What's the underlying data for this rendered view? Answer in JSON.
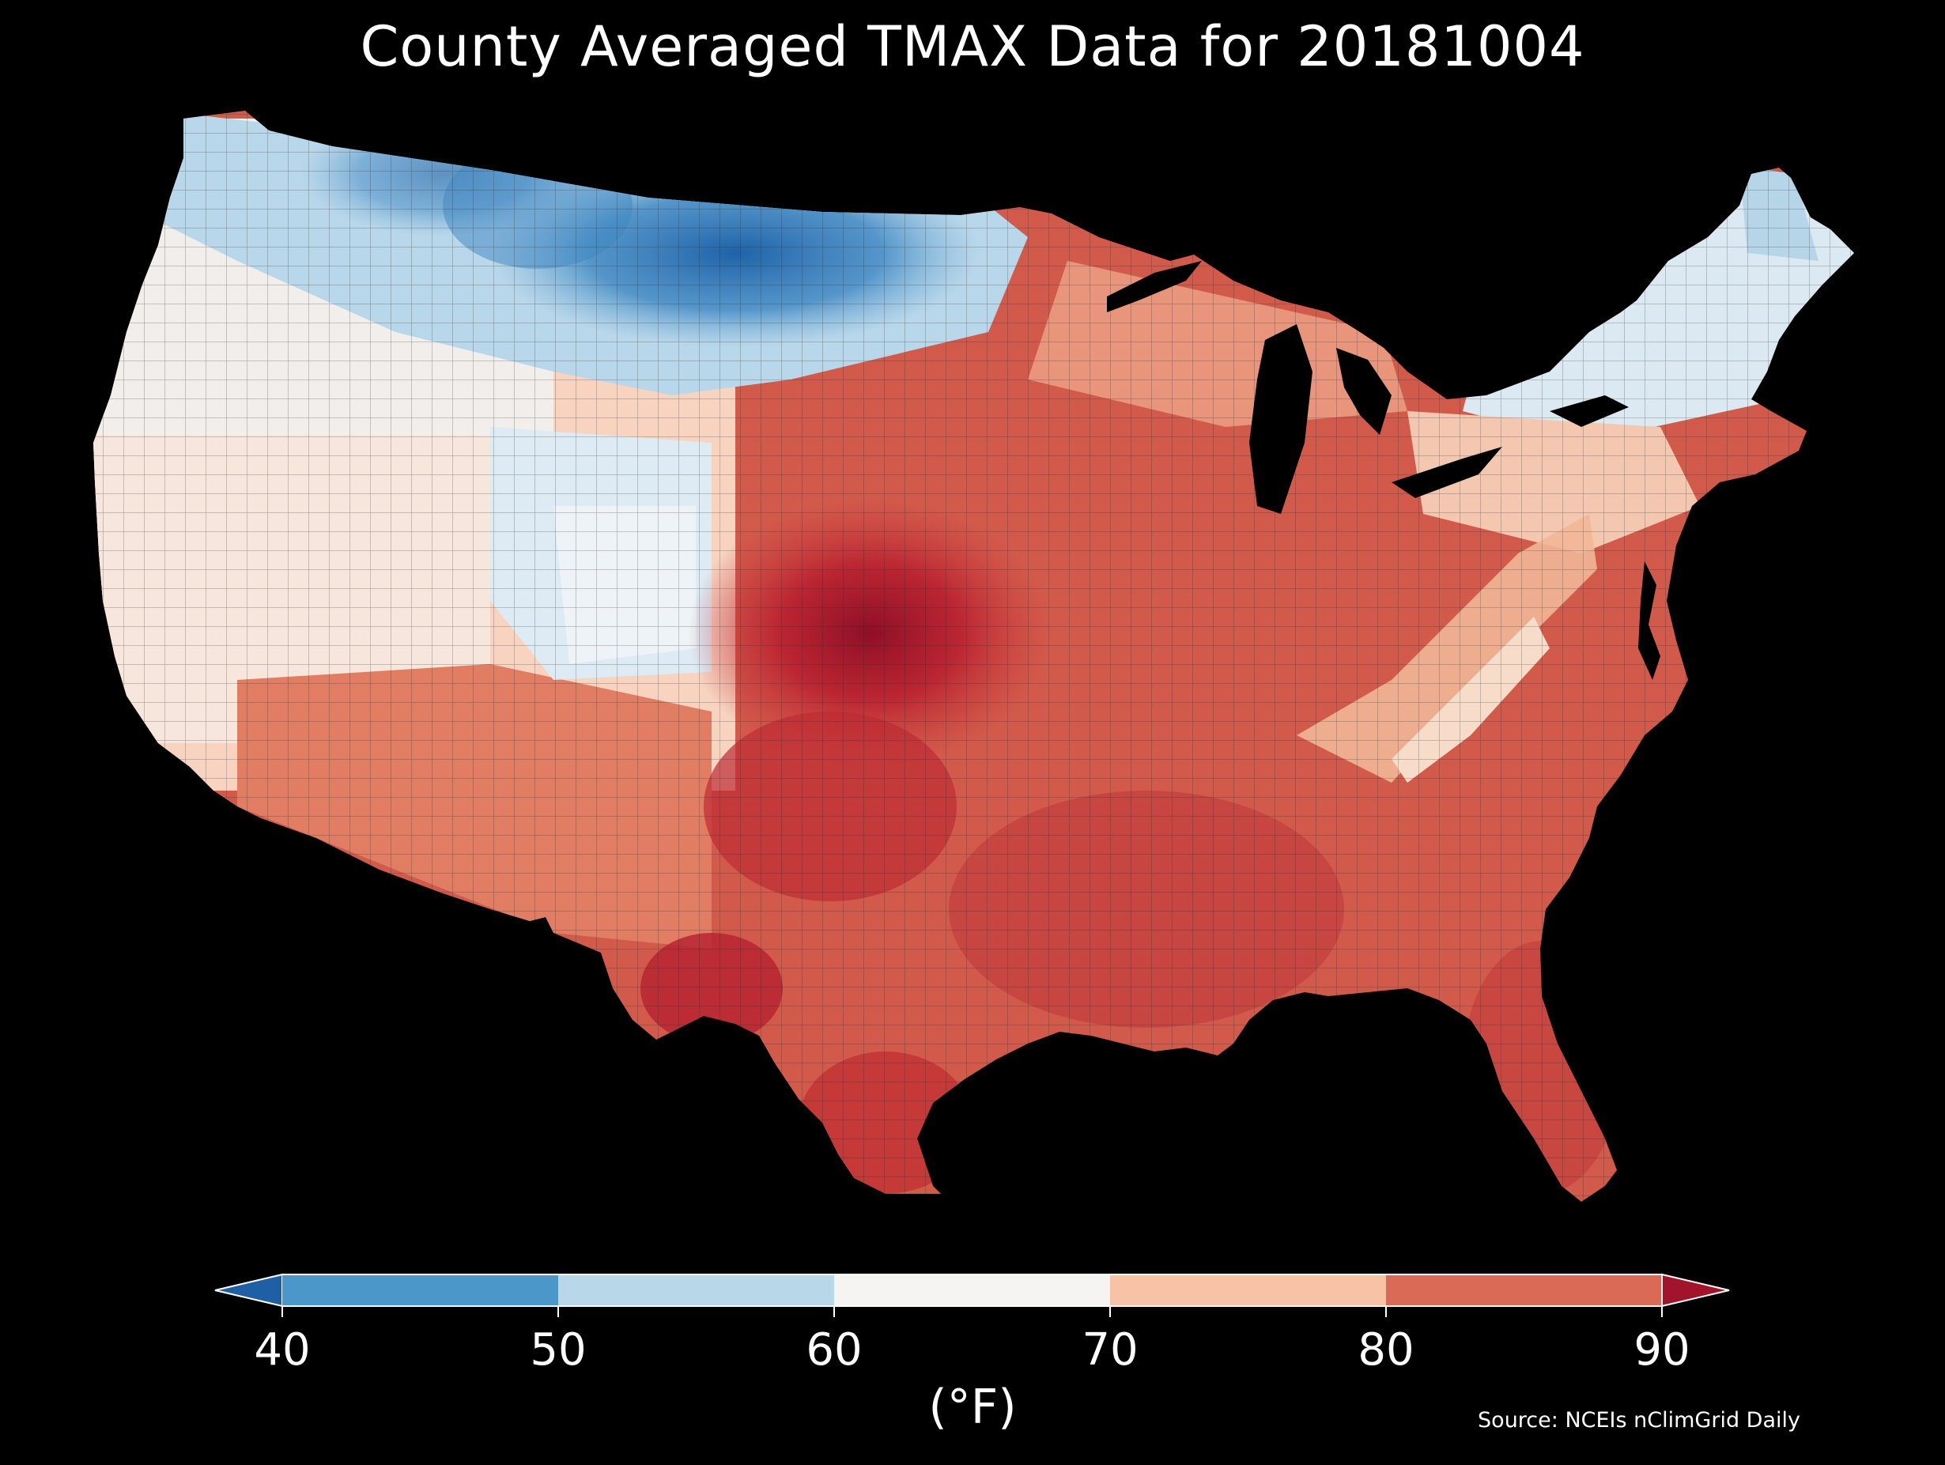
{
  "title": "County Averaged TMAX Data for 20181004",
  "legend": {
    "unit": "(°F)",
    "ticks": [
      "40",
      "50",
      "60",
      "70",
      "80",
      "90"
    ],
    "bins": [
      {
        "range": "<40",
        "color": "#1f5fa3"
      },
      {
        "range": "40-50",
        "color": "#4b97c9"
      },
      {
        "range": "50-60",
        "color": "#b8d7e9"
      },
      {
        "range": "60-70",
        "color": "#f5f4f3"
      },
      {
        "range": "70-80",
        "color": "#f8c2a6"
      },
      {
        "range": "80-90",
        "color": "#da6a55"
      },
      {
        "range": ">90",
        "color": "#a1142c"
      }
    ]
  },
  "source": "Source: NCEIs nClimGrid Daily",
  "map": {
    "region": "Contiguous United States counties",
    "variable": "TMAX",
    "date": "20181004"
  }
}
